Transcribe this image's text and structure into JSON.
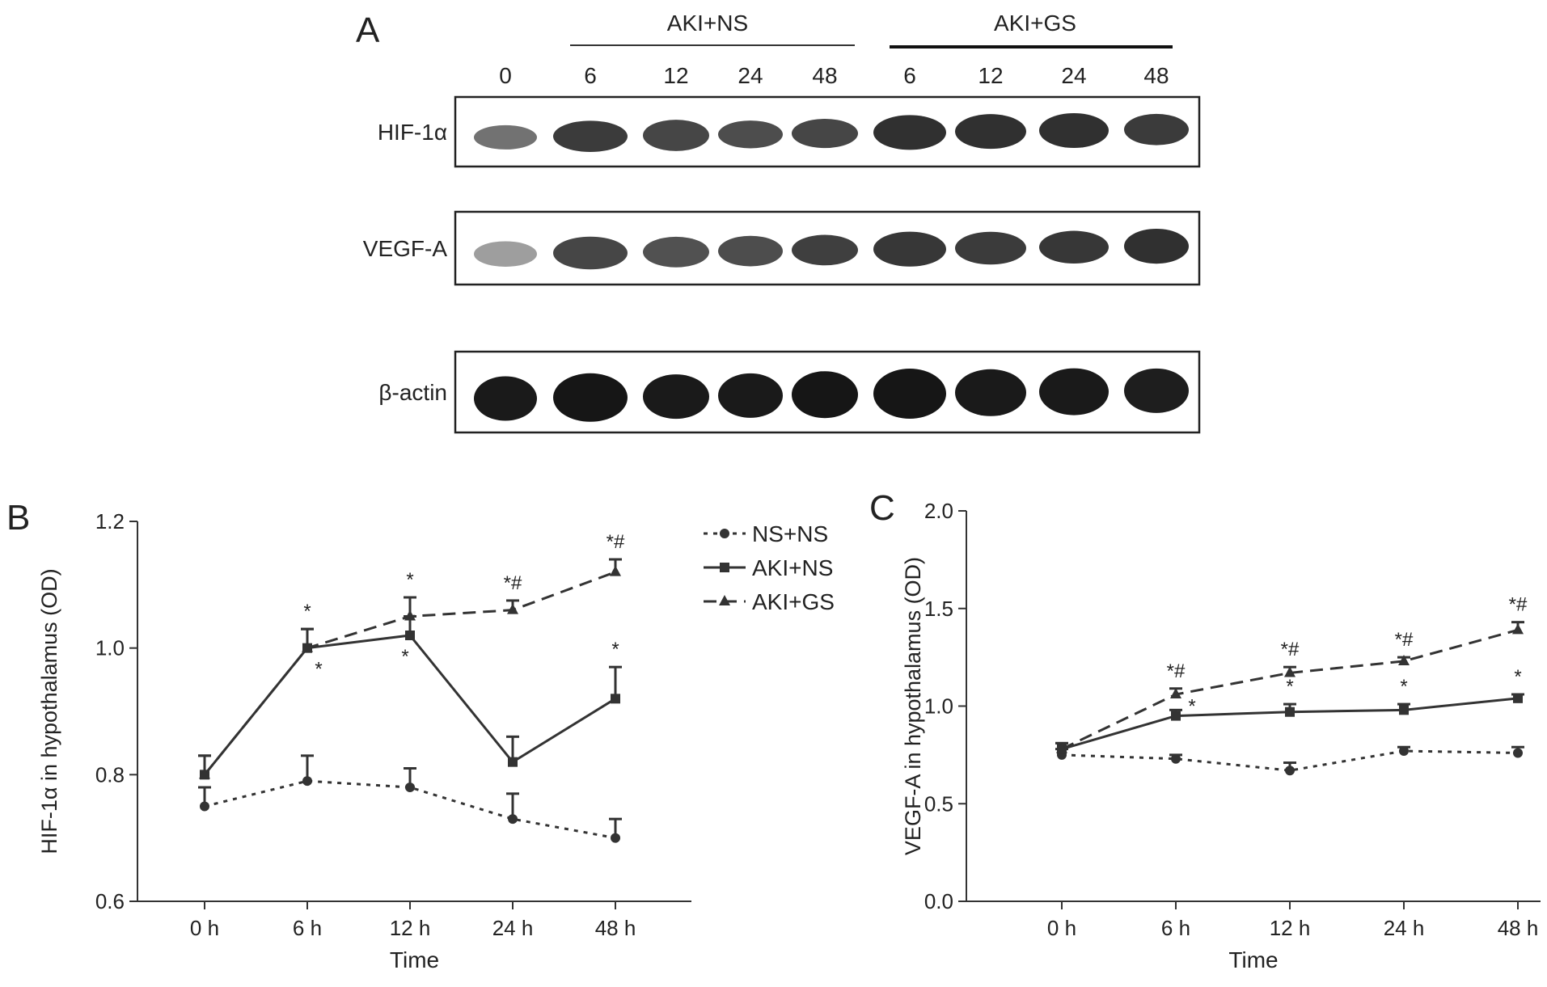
{
  "panel_a": {
    "letter": "A",
    "groups": [
      "AKI+NS",
      "AKI+GS"
    ],
    "lanes": [
      "0",
      "6",
      "12",
      "24",
      "48",
      "6",
      "12",
      "24",
      "48"
    ],
    "blots": [
      {
        "label": "HIF-1α",
        "intensity": [
          0.55,
          0.8,
          0.75,
          0.72,
          0.75,
          0.85,
          0.85,
          0.85,
          0.8
        ],
        "band_height": [
          0.35,
          0.45,
          0.45,
          0.4,
          0.42,
          0.5,
          0.5,
          0.5,
          0.45
        ]
      },
      {
        "label": "VEGF-A",
        "intensity": [
          0.35,
          0.75,
          0.7,
          0.72,
          0.78,
          0.82,
          0.8,
          0.82,
          0.85
        ],
        "band_height": [
          0.35,
          0.45,
          0.42,
          0.42,
          0.42,
          0.48,
          0.45,
          0.45,
          0.48
        ]
      },
      {
        "label": "β-actin",
        "intensity": [
          0.95,
          0.97,
          0.95,
          0.95,
          0.97,
          0.97,
          0.95,
          0.95,
          0.93
        ],
        "band_height": [
          0.55,
          0.6,
          0.55,
          0.55,
          0.58,
          0.62,
          0.58,
          0.58,
          0.55
        ]
      }
    ]
  },
  "legend": {
    "items": [
      {
        "name": "NS+NS",
        "style": "dotted",
        "marker": "circle"
      },
      {
        "name": "AKI+NS",
        "style": "solid",
        "marker": "square"
      },
      {
        "name": "AKI+GS",
        "style": "dashed",
        "marker": "triangle"
      }
    ]
  },
  "chart_data": [
    {
      "panel": "B",
      "type": "line",
      "xlabel": "Time",
      "ylabel": "HIF-1α in hypothalamus (OD)",
      "categories": [
        "0 h",
        "6 h",
        "12 h",
        "24 h",
        "48 h"
      ],
      "ylim": [
        0.6,
        1.2
      ],
      "yticks": [
        "0.6",
        "0.8",
        "1.0",
        "1.2"
      ],
      "series": [
        {
          "name": "NS+NS",
          "values": [
            0.75,
            0.79,
            0.78,
            0.73,
            0.7
          ],
          "errors": [
            0.03,
            0.04,
            0.03,
            0.04,
            0.03
          ],
          "annotations": [
            "",
            "",
            "",
            "",
            ""
          ]
        },
        {
          "name": "AKI+NS",
          "values": [
            0.8,
            1.0,
            1.02,
            0.82,
            0.92
          ],
          "errors": [
            0.03,
            0.03,
            0.03,
            0.04,
            0.05
          ],
          "annotations": [
            "",
            "*",
            "*",
            "",
            "*"
          ]
        },
        {
          "name": "AKI+GS",
          "values": [
            0.8,
            1.0,
            1.05,
            1.06,
            1.12
          ],
          "errors": [
            0.03,
            0.03,
            0.03,
            0.015,
            0.02
          ],
          "annotations": [
            "",
            "*",
            "*",
            "*#",
            "*#"
          ]
        }
      ]
    },
    {
      "panel": "C",
      "type": "line",
      "xlabel": "Time",
      "ylabel": "VEGF-A in hypothalamus (OD)",
      "categories": [
        "0 h",
        "6 h",
        "12 h",
        "24 h",
        "48 h"
      ],
      "ylim": [
        0.0,
        2.0
      ],
      "yticks": [
        "0.0",
        "0.5",
        "1.0",
        "1.5",
        "2.0"
      ],
      "series": [
        {
          "name": "NS+NS",
          "values": [
            0.75,
            0.73,
            0.67,
            0.77,
            0.76
          ],
          "errors": [
            0.03,
            0.02,
            0.04,
            0.02,
            0.03
          ],
          "annotations": [
            "",
            "",
            "",
            "",
            ""
          ]
        },
        {
          "name": "AKI+NS",
          "values": [
            0.78,
            0.95,
            0.97,
            0.98,
            1.04
          ],
          "errors": [
            0.03,
            0.03,
            0.04,
            0.03,
            0.02
          ],
          "annotations": [
            "",
            "*",
            "*",
            "*",
            "*"
          ]
        },
        {
          "name": "AKI+GS",
          "values": [
            0.78,
            1.06,
            1.17,
            1.23,
            1.39
          ],
          "errors": [
            0.03,
            0.03,
            0.03,
            0.02,
            0.04
          ],
          "annotations": [
            "",
            "*#",
            "*#",
            "*#",
            "*#"
          ]
        }
      ]
    }
  ]
}
